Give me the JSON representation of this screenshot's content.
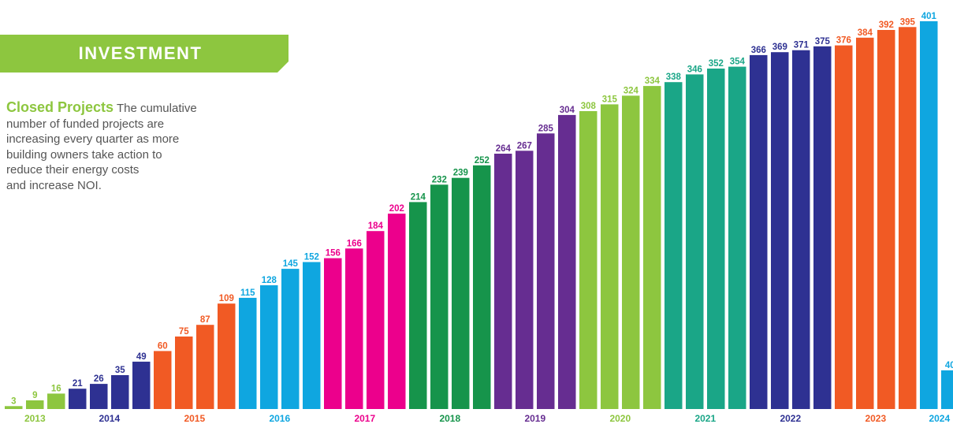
{
  "banner": {
    "title": "INVESTMENT",
    "color": "#8dc63f"
  },
  "description": {
    "heading": "Closed Projects",
    "lines": [
      "The cumulative",
      "number of funded projects are",
      "increasing every quarter as more",
      "building owners take action to",
      "reduce their energy costs",
      "and increase NOI."
    ]
  },
  "chart_data": {
    "type": "bar",
    "title": "",
    "xlabel": "",
    "ylabel": "",
    "ylim": [
      0,
      405
    ],
    "grid": false,
    "values": [
      3,
      9,
      16,
      21,
      26,
      35,
      49,
      60,
      75,
      87,
      109,
      115,
      128,
      145,
      152,
      156,
      166,
      184,
      202,
      214,
      232,
      239,
      252,
      264,
      267,
      285,
      304,
      308,
      315,
      324,
      334,
      338,
      346,
      352,
      354,
      366,
      369,
      371,
      375,
      376,
      384,
      392,
      395,
      401,
      40
    ],
    "bar_years": [
      "2013",
      "2013",
      "2013",
      "2014",
      "2014",
      "2014",
      "2014",
      "2015",
      "2015",
      "2015",
      "2015",
      "2016",
      "2016",
      "2016",
      "2016",
      "2017",
      "2017",
      "2017",
      "2017",
      "2018",
      "2018",
      "2018",
      "2018",
      "2019",
      "2019",
      "2019",
      "2019",
      "2020",
      "2020",
      "2020",
      "2020",
      "2021",
      "2021",
      "2021",
      "2021",
      "2022",
      "2022",
      "2022",
      "2022",
      "2023",
      "2023",
      "2023",
      "2023",
      "2024",
      "2024"
    ],
    "years": [
      {
        "label": "2013",
        "color": "#8dc63f"
      },
      {
        "label": "2014",
        "color": "#2e3192"
      },
      {
        "label": "2015",
        "color": "#f15a24"
      },
      {
        "label": "2016",
        "color": "#0fa6e0"
      },
      {
        "label": "2017",
        "color": "#ec008c"
      },
      {
        "label": "2018",
        "color": "#16944b"
      },
      {
        "label": "2019",
        "color": "#662d91"
      },
      {
        "label": "2020",
        "color": "#8dc63f"
      },
      {
        "label": "2021",
        "color": "#1aa687"
      },
      {
        "label": "2022",
        "color": "#2e3192"
      },
      {
        "label": "2023",
        "color": "#f15a24"
      },
      {
        "label": "2024",
        "color": "#0fa6e0"
      }
    ]
  }
}
